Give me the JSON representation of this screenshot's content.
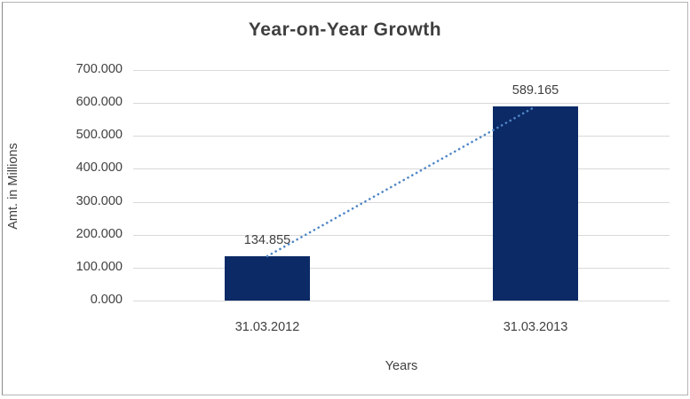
{
  "frame": {
    "background": "#ffffff",
    "border_color": "#b5b5b5"
  },
  "chart_data": {
    "type": "bar",
    "title": "Year-on-Year Growth",
    "categories": [
      "31.03.2012",
      "31.03.2013"
    ],
    "values": [
      134.855,
      589.165
    ],
    "value_labels": [
      "134.855",
      "589.165"
    ],
    "xlabel": "Years",
    "ylabel": "Amt. in Millions",
    "ylim": [
      0,
      700
    ],
    "y_tick_values": [
      700,
      600,
      500,
      400,
      300,
      200,
      100,
      0
    ],
    "y_tick_labels": [
      "700.000",
      "600.000",
      "500.000",
      "400.000",
      "300.000",
      "200.000",
      "100.000",
      "0.000"
    ],
    "grid": true,
    "legend": "none",
    "trendline": {
      "style": "dotted",
      "from_category": "31.03.2012",
      "to_category": "31.03.2013"
    },
    "colors": {
      "bar": "#0c2a66",
      "trendline": "#4f86c6",
      "gridline": "#d9d9d9",
      "text": "#3f3f3f"
    }
  }
}
